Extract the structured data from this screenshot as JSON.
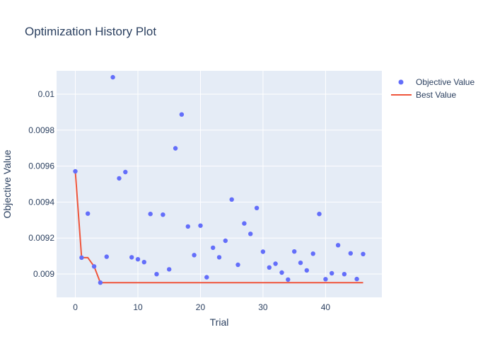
{
  "chart_data": {
    "type": "scatter",
    "title": "Optimization History Plot",
    "xlabel": "Trial",
    "ylabel": "Objective Value",
    "xlim": [
      -3,
      49
    ],
    "ylim": [
      0.00887,
      0.01013
    ],
    "x_ticks": [
      0,
      10,
      20,
      30,
      40
    ],
    "y_ticks": [
      0.009,
      0.0092,
      0.0094,
      0.0096,
      0.0098,
      0.01
    ],
    "x_tick_labels": [
      "0",
      "10",
      "20",
      "30",
      "40"
    ],
    "y_tick_labels": [
      "0.009",
      "0.0092",
      "0.0094",
      "0.0096",
      "0.0098",
      "0.01"
    ],
    "grid": true,
    "legend_position": "top-right",
    "colors": {
      "objective": "#636efa",
      "best": "#ef553b",
      "plot_bg": "#e5ecf6"
    },
    "series": [
      {
        "name": "Objective Value",
        "mode": "markers",
        "x": [
          0,
          1,
          2,
          3,
          4,
          5,
          6,
          7,
          8,
          9,
          10,
          11,
          12,
          13,
          14,
          15,
          16,
          17,
          18,
          19,
          20,
          21,
          22,
          23,
          24,
          25,
          26,
          27,
          28,
          29,
          30,
          31,
          32,
          33,
          34,
          35,
          36,
          37,
          38,
          39,
          40,
          41,
          42,
          43,
          44,
          45,
          46
        ],
        "y": [
          0.009571,
          0.009091,
          0.009336,
          0.009042,
          0.008952,
          0.009096,
          0.010094,
          0.009532,
          0.009567,
          0.009093,
          0.009082,
          0.009066,
          0.009334,
          0.008999,
          0.00933,
          0.009026,
          0.009699,
          0.009887,
          0.009264,
          0.009105,
          0.009269,
          0.008982,
          0.009146,
          0.009093,
          0.009185,
          0.009414,
          0.009051,
          0.009281,
          0.009223,
          0.009367,
          0.009124,
          0.009036,
          0.009057,
          0.009008,
          0.008969,
          0.009125,
          0.009062,
          0.00902,
          0.009113,
          0.009334,
          0.008971,
          0.009004,
          0.00916,
          0.008999,
          0.009115,
          0.008972,
          0.009111
        ]
      },
      {
        "name": "Best Value",
        "mode": "lines",
        "x": [
          0,
          1,
          2,
          3,
          4,
          5,
          6,
          7,
          8,
          9,
          10,
          11,
          12,
          13,
          14,
          15,
          16,
          17,
          18,
          19,
          20,
          21,
          22,
          23,
          24,
          25,
          26,
          27,
          28,
          29,
          30,
          31,
          32,
          33,
          34,
          35,
          36,
          37,
          38,
          39,
          40,
          41,
          42,
          43,
          44,
          45,
          46
        ],
        "y": [
          0.009571,
          0.009091,
          0.009091,
          0.009042,
          0.008952,
          0.008952,
          0.008952,
          0.008952,
          0.008952,
          0.008952,
          0.008952,
          0.008952,
          0.008952,
          0.008952,
          0.008952,
          0.008952,
          0.008952,
          0.008952,
          0.008952,
          0.008952,
          0.008952,
          0.008952,
          0.008952,
          0.008952,
          0.008952,
          0.008952,
          0.008952,
          0.008952,
          0.008952,
          0.008952,
          0.008952,
          0.008952,
          0.008952,
          0.008952,
          0.008952,
          0.008952,
          0.008952,
          0.008952,
          0.008952,
          0.008952,
          0.008952,
          0.008952,
          0.008952,
          0.008952,
          0.008952,
          0.008952,
          0.008952
        ]
      }
    ]
  }
}
